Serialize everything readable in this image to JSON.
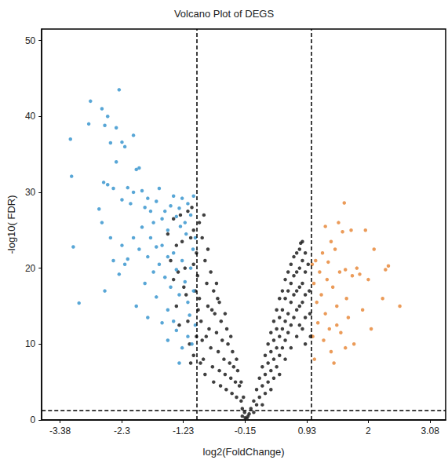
{
  "chart_data": {
    "type": "scatter",
    "title": "Volcano Plot of DEGS",
    "x_label": "log2(FoldChange)",
    "y_label": "-log10( FDR)",
    "xlim": [
      -3.7,
      3.35
    ],
    "xticks": [
      -3.38,
      -2.3,
      -1.23,
      -0.15,
      0.93,
      2,
      3.08
    ],
    "ylim": [
      0,
      51.5
    ],
    "yticks": [
      0,
      10,
      20,
      30,
      40,
      50
    ],
    "grid": false,
    "marker": "circle",
    "reference_lines": {
      "x": [
        -1,
        1
      ],
      "y": [
        1.3
      ]
    },
    "series": [
      {
        "color": "#1f1f1f",
        "x": [
          -1.5,
          -1.45,
          -1.4,
          -1.35,
          -1.3,
          -1.28,
          -1.25,
          -1.2,
          -1.18,
          -1.15,
          -1.12,
          -1.1,
          -1.08,
          -1.05,
          -1.0,
          -0.98,
          -0.95,
          -0.92,
          -0.9,
          -0.88,
          -0.85,
          -0.95,
          -0.9,
          -0.85,
          -0.82,
          -0.8,
          -0.78,
          -0.75,
          -0.72,
          -0.7,
          -0.8,
          -0.75,
          -0.7,
          -0.68,
          -0.65,
          -0.62,
          -0.6,
          -0.58,
          -0.65,
          -0.6,
          -0.57,
          -0.55,
          -0.52,
          -0.5,
          -0.48,
          -0.5,
          -0.47,
          -0.45,
          -0.42,
          -0.4,
          -0.38,
          -0.4,
          -0.37,
          -0.35,
          -0.32,
          -0.3,
          -0.3,
          -0.28,
          -0.25,
          -0.22,
          -0.2,
          -0.22,
          -0.18,
          -0.16,
          -0.15,
          -1.4,
          -1.35,
          -1.32,
          -1.22,
          -1.15,
          -1.1,
          -1.05,
          -1.02,
          -0.97,
          -1.0,
          -1.05,
          -0.93,
          -0.87,
          -0.83,
          -0.73,
          -0.63,
          -0.12,
          -0.08,
          -0.2,
          -0.1,
          -0.05,
          0,
          0,
          0.05,
          0.05,
          0.1,
          0.1,
          0.15,
          0.15,
          0.15,
          0.2,
          0.2,
          0.2,
          0.25,
          0.25,
          0.25,
          0.3,
          0.3,
          0.3,
          0.3,
          0.35,
          0.35,
          0.35,
          0.35,
          0.4,
          0.4,
          0.4,
          0.4,
          0.45,
          0.45,
          0.45,
          0.45,
          0.45,
          0.5,
          0.5,
          0.5,
          0.5,
          0.55,
          0.55,
          0.55,
          0.55,
          0.55,
          0.6,
          0.6,
          0.6,
          0.6,
          0.65,
          0.65,
          0.65,
          0.65,
          0.65,
          0.7,
          0.7,
          0.7,
          0.7,
          0.75,
          0.75,
          0.75,
          0.75,
          0.75,
          0.8,
          0.8,
          0.8,
          0.8,
          0.8,
          0.85,
          0.85,
          0.85,
          0.85,
          0.85,
          0.9,
          0.9,
          0.9,
          0.9,
          0.9,
          0.95,
          0.97,
          0.98,
          0.99,
          0.82
        ],
        "values": [
          24.5,
          21,
          18.5,
          15,
          12.5,
          27,
          23.5,
          20,
          16.5,
          13,
          10,
          7.5,
          28,
          25,
          22,
          19,
          16,
          13,
          10.5,
          8,
          6,
          26,
          24,
          21,
          18,
          15,
          12,
          9.5,
          7,
          5,
          22.5,
          19.5,
          17,
          14,
          11.5,
          9,
          6.5,
          4.5,
          18,
          15.5,
          13,
          10.5,
          8,
          6,
          4,
          14,
          12,
          10,
          7.5,
          5.5,
          3.5,
          11,
          9,
          7,
          5,
          3,
          8,
          6.5,
          4.5,
          2.5,
          1.5,
          5,
          3,
          1,
          0.3,
          26.5,
          23,
          19.5,
          17.5,
          27.5,
          24,
          20.5,
          17,
          14.5,
          11,
          8.5,
          7.5,
          27,
          11,
          14.5,
          16,
          0.2,
          0.8,
          0.5,
          0.5,
          1.5,
          2.5,
          1,
          4,
          2,
          5.5,
          3,
          7,
          4.5,
          2,
          8.5,
          6,
          3.5,
          10,
          7.5,
          5,
          11.5,
          9,
          6.5,
          4,
          13,
          10.5,
          8,
          5.5,
          14.5,
          12,
          9.5,
          7,
          16,
          13.5,
          11,
          8.5,
          6,
          17,
          14.5,
          12,
          9.5,
          18.5,
          16,
          13,
          10.5,
          8,
          19.5,
          17,
          14,
          11.5,
          20.5,
          18,
          15.5,
          12.5,
          9.5,
          21.5,
          19,
          16.5,
          13.5,
          22,
          19.5,
          17,
          14.5,
          11,
          22.5,
          20,
          17.5,
          15,
          12.5,
          23.5,
          21,
          18,
          15.5,
          12,
          22,
          19.5,
          16.5,
          13.5,
          10,
          20.5,
          17,
          14,
          11,
          23.3
        ]
      },
      {
        "color": "#3b97cf",
        "x": [
          -3.2,
          -3.18,
          -3.15,
          -3.05,
          -2.85,
          -2.88,
          -2.65,
          -2.6,
          -2.55,
          -2.5,
          -2.35,
          -2.4,
          -2.3,
          -2.25,
          -2.1,
          -2.05,
          -2.0,
          -2.55,
          -2.7,
          -2.62,
          -2.45,
          -2.4,
          -2.3,
          -2.2,
          -2.15,
          -2.1,
          -1.95,
          -1.9,
          -1.85,
          -1.8,
          -1.75,
          -1.7,
          -1.65,
          -1.6,
          -1.55,
          -1.5,
          -1.45,
          -1.4,
          -1.35,
          -1.3,
          -1.25,
          -1.2,
          -1.15,
          -1.1,
          -1.05,
          -1.02,
          -2.65,
          -2.5,
          -2.45,
          -2.3,
          -2.2,
          -2.1,
          -2.0,
          -1.95,
          -1.85,
          -1.8,
          -1.75,
          -1.7,
          -1.65,
          -1.6,
          -1.55,
          -1.5,
          -1.45,
          -1.4,
          -1.35,
          -1.3,
          -1.25,
          -1.2,
          -1.15,
          -1.1,
          -1.05,
          -1.02,
          -2.6,
          -2.35,
          -2.05,
          -1.85,
          -1.7,
          -1.6,
          -1.5,
          -1.4,
          -1.3,
          -1.25,
          -1.15,
          -1.08,
          -1.5,
          -1.35,
          -2.25,
          -1.9,
          -1.12,
          -1.06,
          -1.18,
          -1.28
        ],
        "values": [
          37,
          32.1,
          22.8,
          15.4,
          42,
          39,
          41,
          38.8,
          40,
          36.5,
          43.5,
          38.5,
          36.6,
          36,
          37.5,
          33,
          33.2,
          31,
          27.8,
          31.3,
          30.5,
          34,
          29,
          30.6,
          28.5,
          30,
          30.2,
          28,
          29.2,
          27.5,
          26,
          28.8,
          30.5,
          26.5,
          27.5,
          25,
          28.2,
          29.5,
          26.8,
          27.9,
          29.2,
          26,
          28.5,
          27,
          29.5,
          24,
          26,
          24,
          21,
          23,
          21.2,
          24,
          22.5,
          25.4,
          21.5,
          24,
          19.5,
          22.8,
          20.5,
          23,
          18.8,
          21.5,
          17.5,
          22,
          19.8,
          16.5,
          21,
          18.2,
          15.5,
          20,
          17,
          12.5,
          17,
          19.2,
          15,
          13.5,
          16.2,
          12.8,
          14.5,
          13,
          7.5,
          9.5,
          11,
          10,
          10.5,
          11.8,
          20.5,
          18,
          13.8,
          22.5,
          24.5,
          25.5
        ]
      },
      {
        "color": "#e8893c",
        "x": [
          1.02,
          1.05,
          1.08,
          1.1,
          1.12,
          1.15,
          1.18,
          1.2,
          1.22,
          1.25,
          1.28,
          1.3,
          1.32,
          1.35,
          1.38,
          1.4,
          1.42,
          1.45,
          1.48,
          1.5,
          1.52,
          1.55,
          1.58,
          1.6,
          1.62,
          1.65,
          1.7,
          1.72,
          1.75,
          1.8,
          1.85,
          1.9,
          1.95,
          2.05,
          2.1,
          2.25,
          2.3,
          2.35,
          2.55,
          1.03,
          1.06,
          1.35,
          1.45,
          1.25,
          1.6,
          2.0
        ],
        "values": [
          20.5,
          18,
          21,
          15.5,
          12.8,
          19.5,
          16.5,
          22,
          10.5,
          14,
          18.5,
          20.8,
          12,
          9,
          17.5,
          7.5,
          22.5,
          15,
          26,
          19.5,
          11.5,
          24.8,
          28.6,
          19.8,
          16,
          13.5,
          25,
          19,
          10,
          20,
          19.2,
          14.5,
          25,
          12,
          22.5,
          16,
          19.8,
          20.3,
          15,
          11,
          8,
          23.5,
          12.5,
          25.5,
          9.5,
          18.5
        ]
      }
    ]
  }
}
